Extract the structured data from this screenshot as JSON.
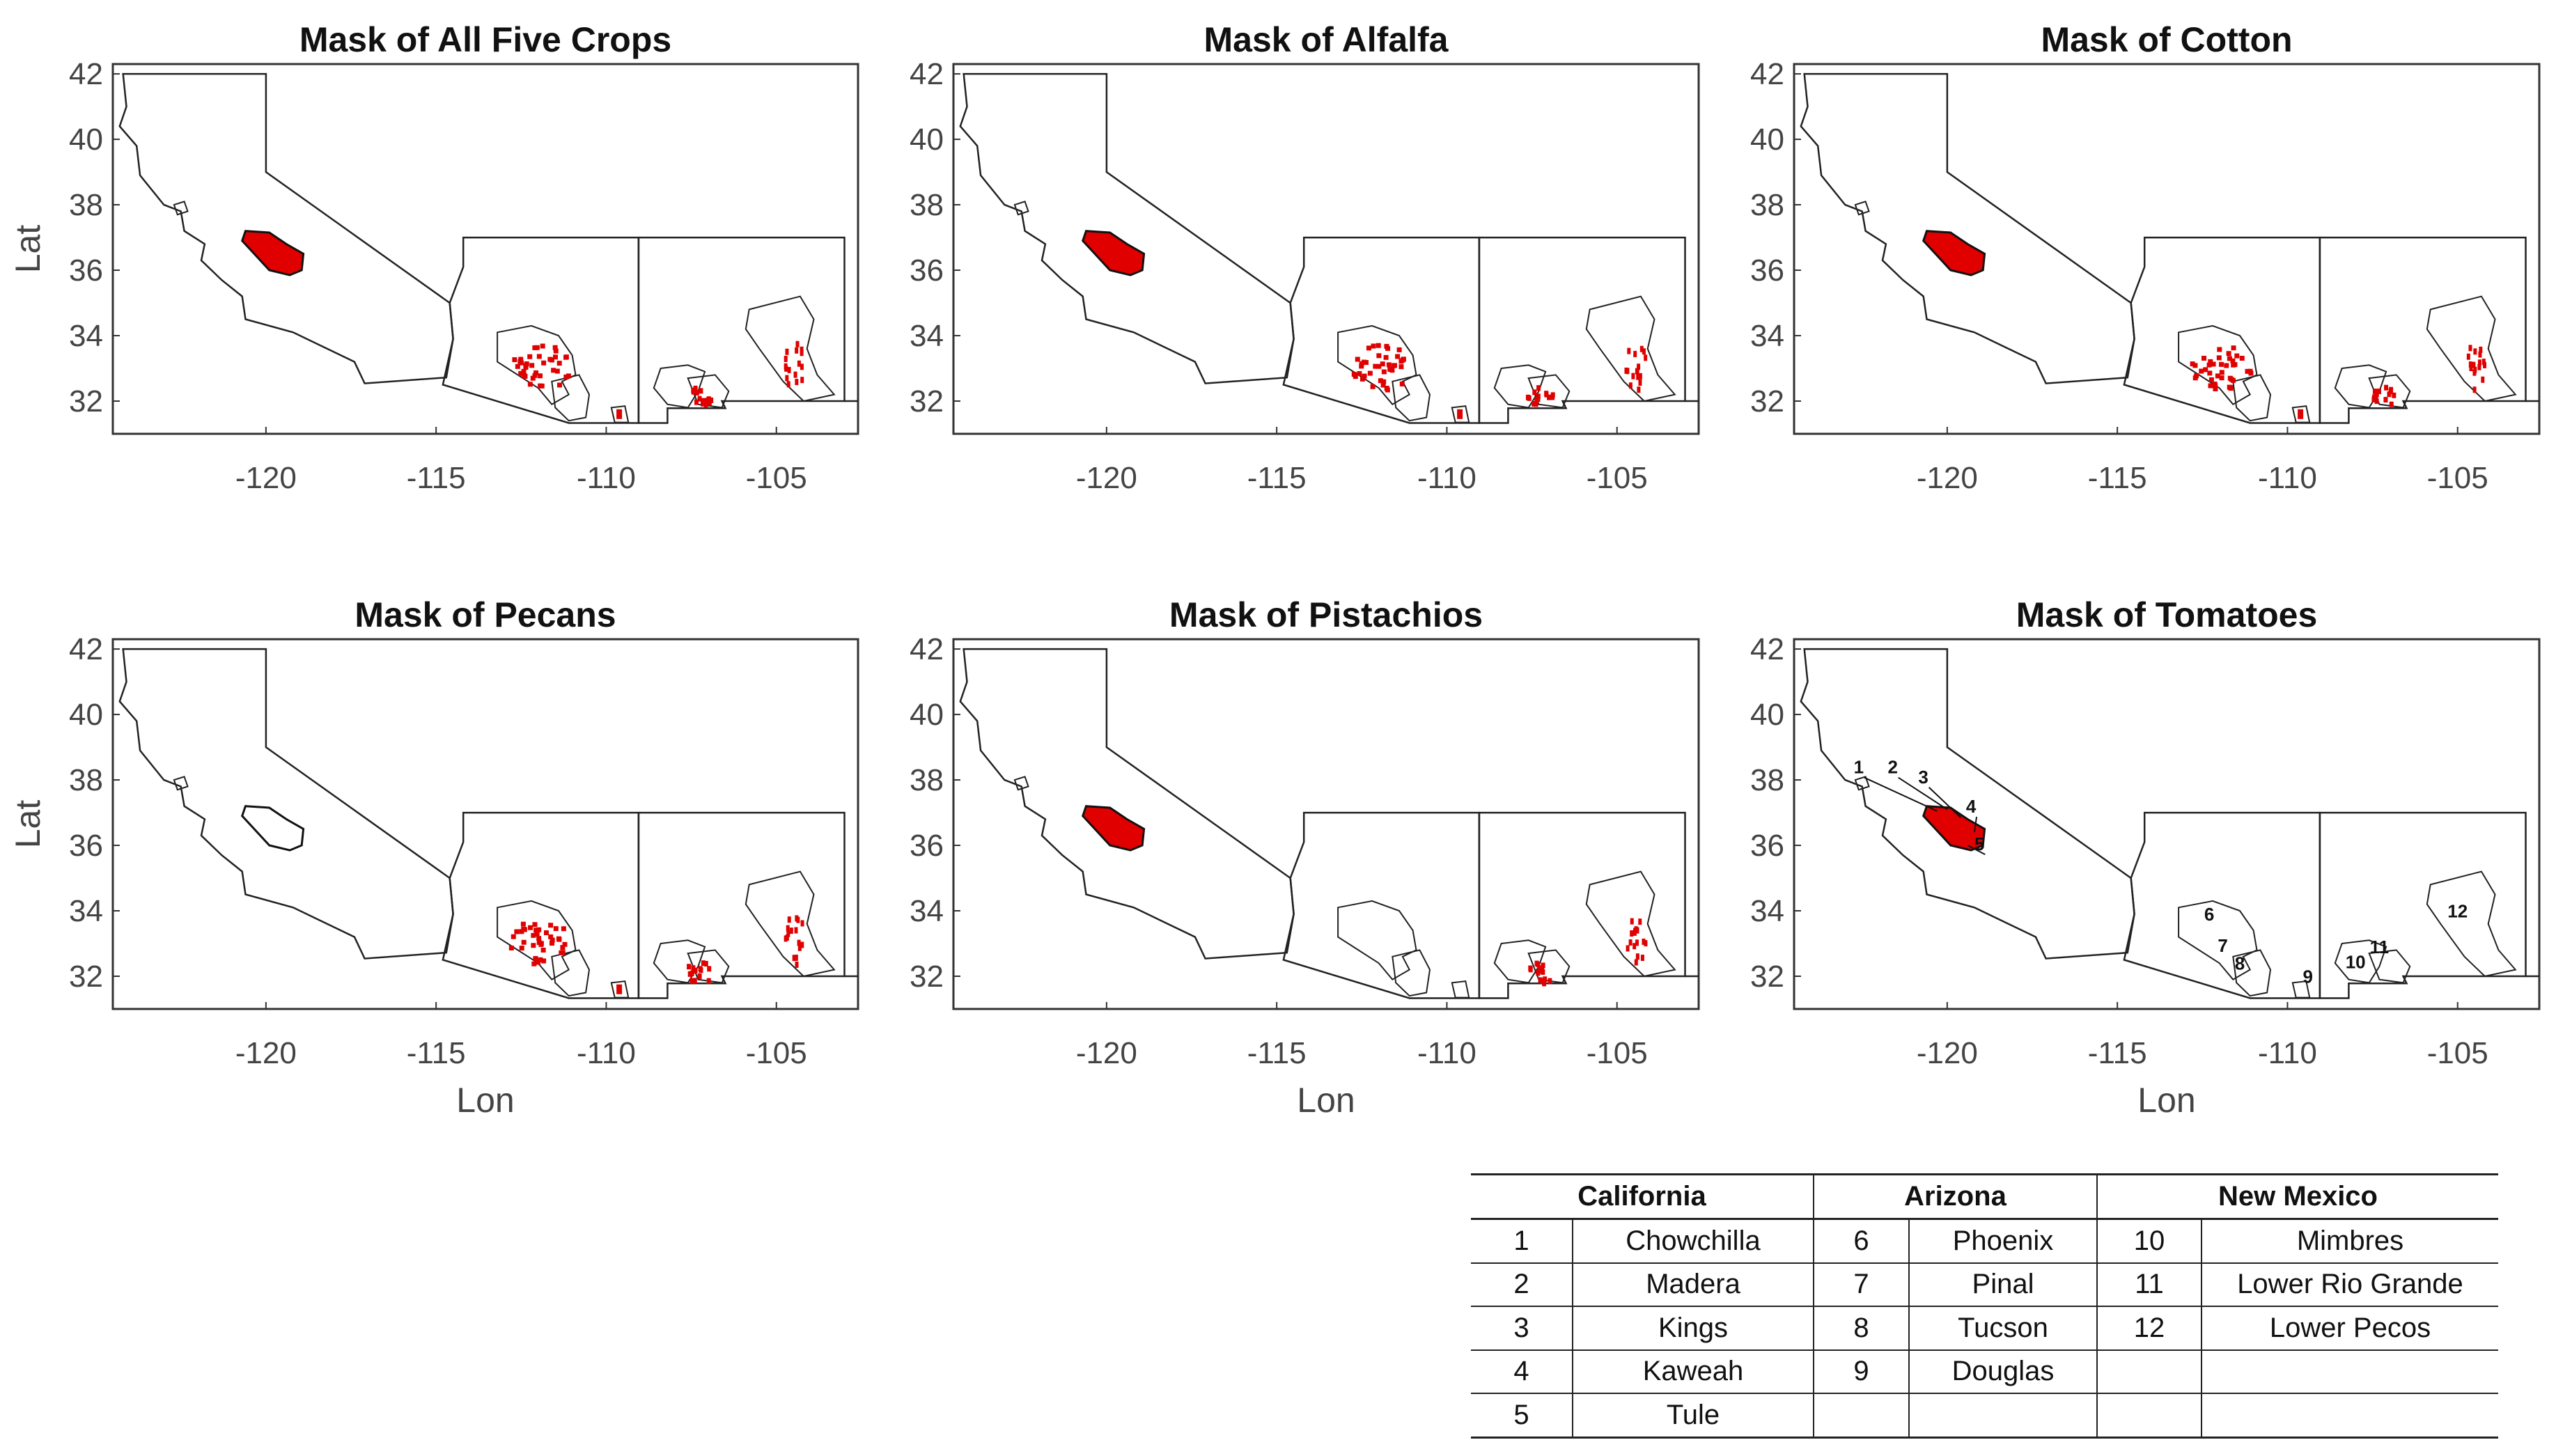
{
  "colors": {
    "mask": "#e00000",
    "outline": "#222222",
    "frame": "#333333"
  },
  "axes": {
    "lon_label": "Lon",
    "lat_label": "Lat",
    "lon_range": [
      -124.5,
      -102.6
    ],
    "lat_range": [
      31.0,
      42.3
    ],
    "lon_ticks": [
      "-120",
      "-115",
      "-110",
      "-105"
    ],
    "lon_tick_values": [
      -120,
      -115,
      -110,
      -105
    ],
    "lat_ticks": [
      "42",
      "40",
      "38",
      "36",
      "34",
      "32"
    ],
    "lat_tick_values": [
      42,
      40,
      38,
      36,
      34,
      32
    ]
  },
  "panels": [
    {
      "title": "Mask of All Five Crops",
      "arizona_mask": true,
      "newmexico_mask": true,
      "california_mask": true
    },
    {
      "title": "Mask of Alfalfa",
      "arizona_mask": true,
      "newmexico_mask": true,
      "california_mask": true
    },
    {
      "title": "Mask of Cotton",
      "arizona_mask": true,
      "newmexico_mask": true,
      "california_mask": true
    },
    {
      "title": "Mask of Pecans",
      "arizona_mask": true,
      "newmexico_mask": true,
      "california_mask": false
    },
    {
      "title": "Mask of Pistachios",
      "arizona_mask": false,
      "newmexico_mask": true,
      "california_mask": true
    },
    {
      "title": "Mask of Tomatoes",
      "arizona_mask": false,
      "newmexico_mask": false,
      "california_mask": true
    }
  ],
  "region_labels": [
    "1",
    "2",
    "3",
    "4",
    "5",
    "6",
    "7",
    "8",
    "9",
    "10",
    "11",
    "12"
  ],
  "table": {
    "headers": [
      "California",
      "Arizona",
      "New Mexico"
    ],
    "rows": [
      [
        "1",
        "Chowchilla",
        "6",
        "Phoenix",
        "10",
        "Mimbres"
      ],
      [
        "2",
        "Madera",
        "7",
        "Pinal",
        "11",
        "Lower Rio Grande"
      ],
      [
        "3",
        "Kings",
        "8",
        "Tucson",
        "12",
        "Lower Pecos"
      ],
      [
        "4",
        "Kaweah",
        "9",
        "Douglas",
        "",
        ""
      ],
      [
        "5",
        "Tule",
        "",
        "",
        "",
        ""
      ]
    ]
  }
}
